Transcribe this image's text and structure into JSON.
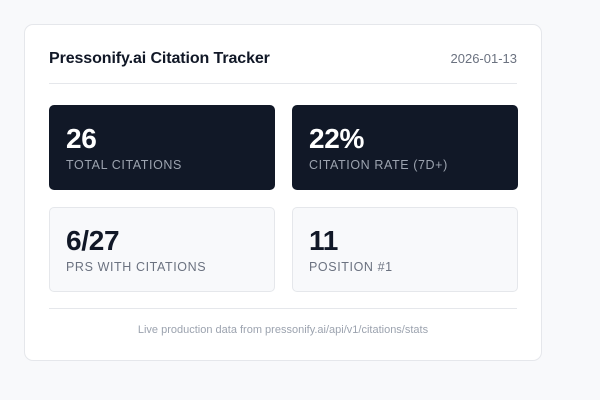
{
  "header": {
    "title": "Pressonify.ai Citation Tracker",
    "date": "2026-01-13"
  },
  "stats": [
    {
      "value": "26",
      "label": "Total Citations",
      "theme": "dark"
    },
    {
      "value": "22%",
      "label": "Citation Rate (7D+)",
      "theme": "dark"
    },
    {
      "value": "6/27",
      "label": "PRs with Citations",
      "theme": "light"
    },
    {
      "value": "11",
      "label": "Position #1",
      "theme": "light"
    }
  ],
  "footer": {
    "text": "Live production data from pressonify.ai/api/v1/citations/stats"
  },
  "colors": {
    "page_background": "#f8f9fb",
    "card_background": "#ffffff",
    "dark_tile": "#111827",
    "light_tile": "#f8f9fb",
    "border": "#e5e7eb"
  }
}
